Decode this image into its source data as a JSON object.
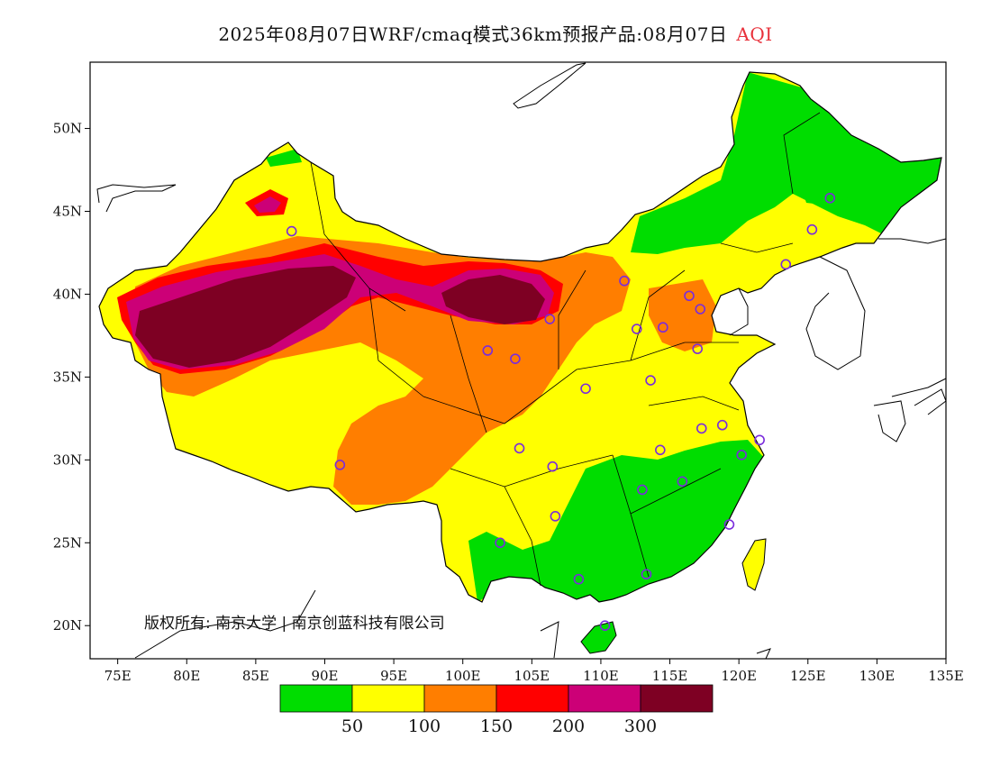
{
  "title": {
    "main": "2025年08月07日WRF/cmaq模式36km预报产品:08月07日",
    "variable": "AQI"
  },
  "map": {
    "lon_range": [
      73,
      135
    ],
    "lat_range": [
      18,
      54
    ],
    "lon_ticks": [
      "75E",
      "80E",
      "85E",
      "90E",
      "95E",
      "100E",
      "105E",
      "110E",
      "115E",
      "120E",
      "125E",
      "130E",
      "135E"
    ],
    "lat_ticks": [
      "20N",
      "25N",
      "30N",
      "35N",
      "40N",
      "45N",
      "50N"
    ],
    "copyright": "版权所有: 南京大学 | 南京创蓝科技有限公司"
  },
  "colorbar": {
    "colors": [
      "#00dd00",
      "#ffff00",
      "#ff7e00",
      "#ff0000",
      "#cc0077",
      "#7e0023"
    ],
    "labels": [
      "50",
      "100",
      "150",
      "200",
      "300"
    ]
  },
  "stations": {
    "marker_color": "#7a2cdc"
  }
}
